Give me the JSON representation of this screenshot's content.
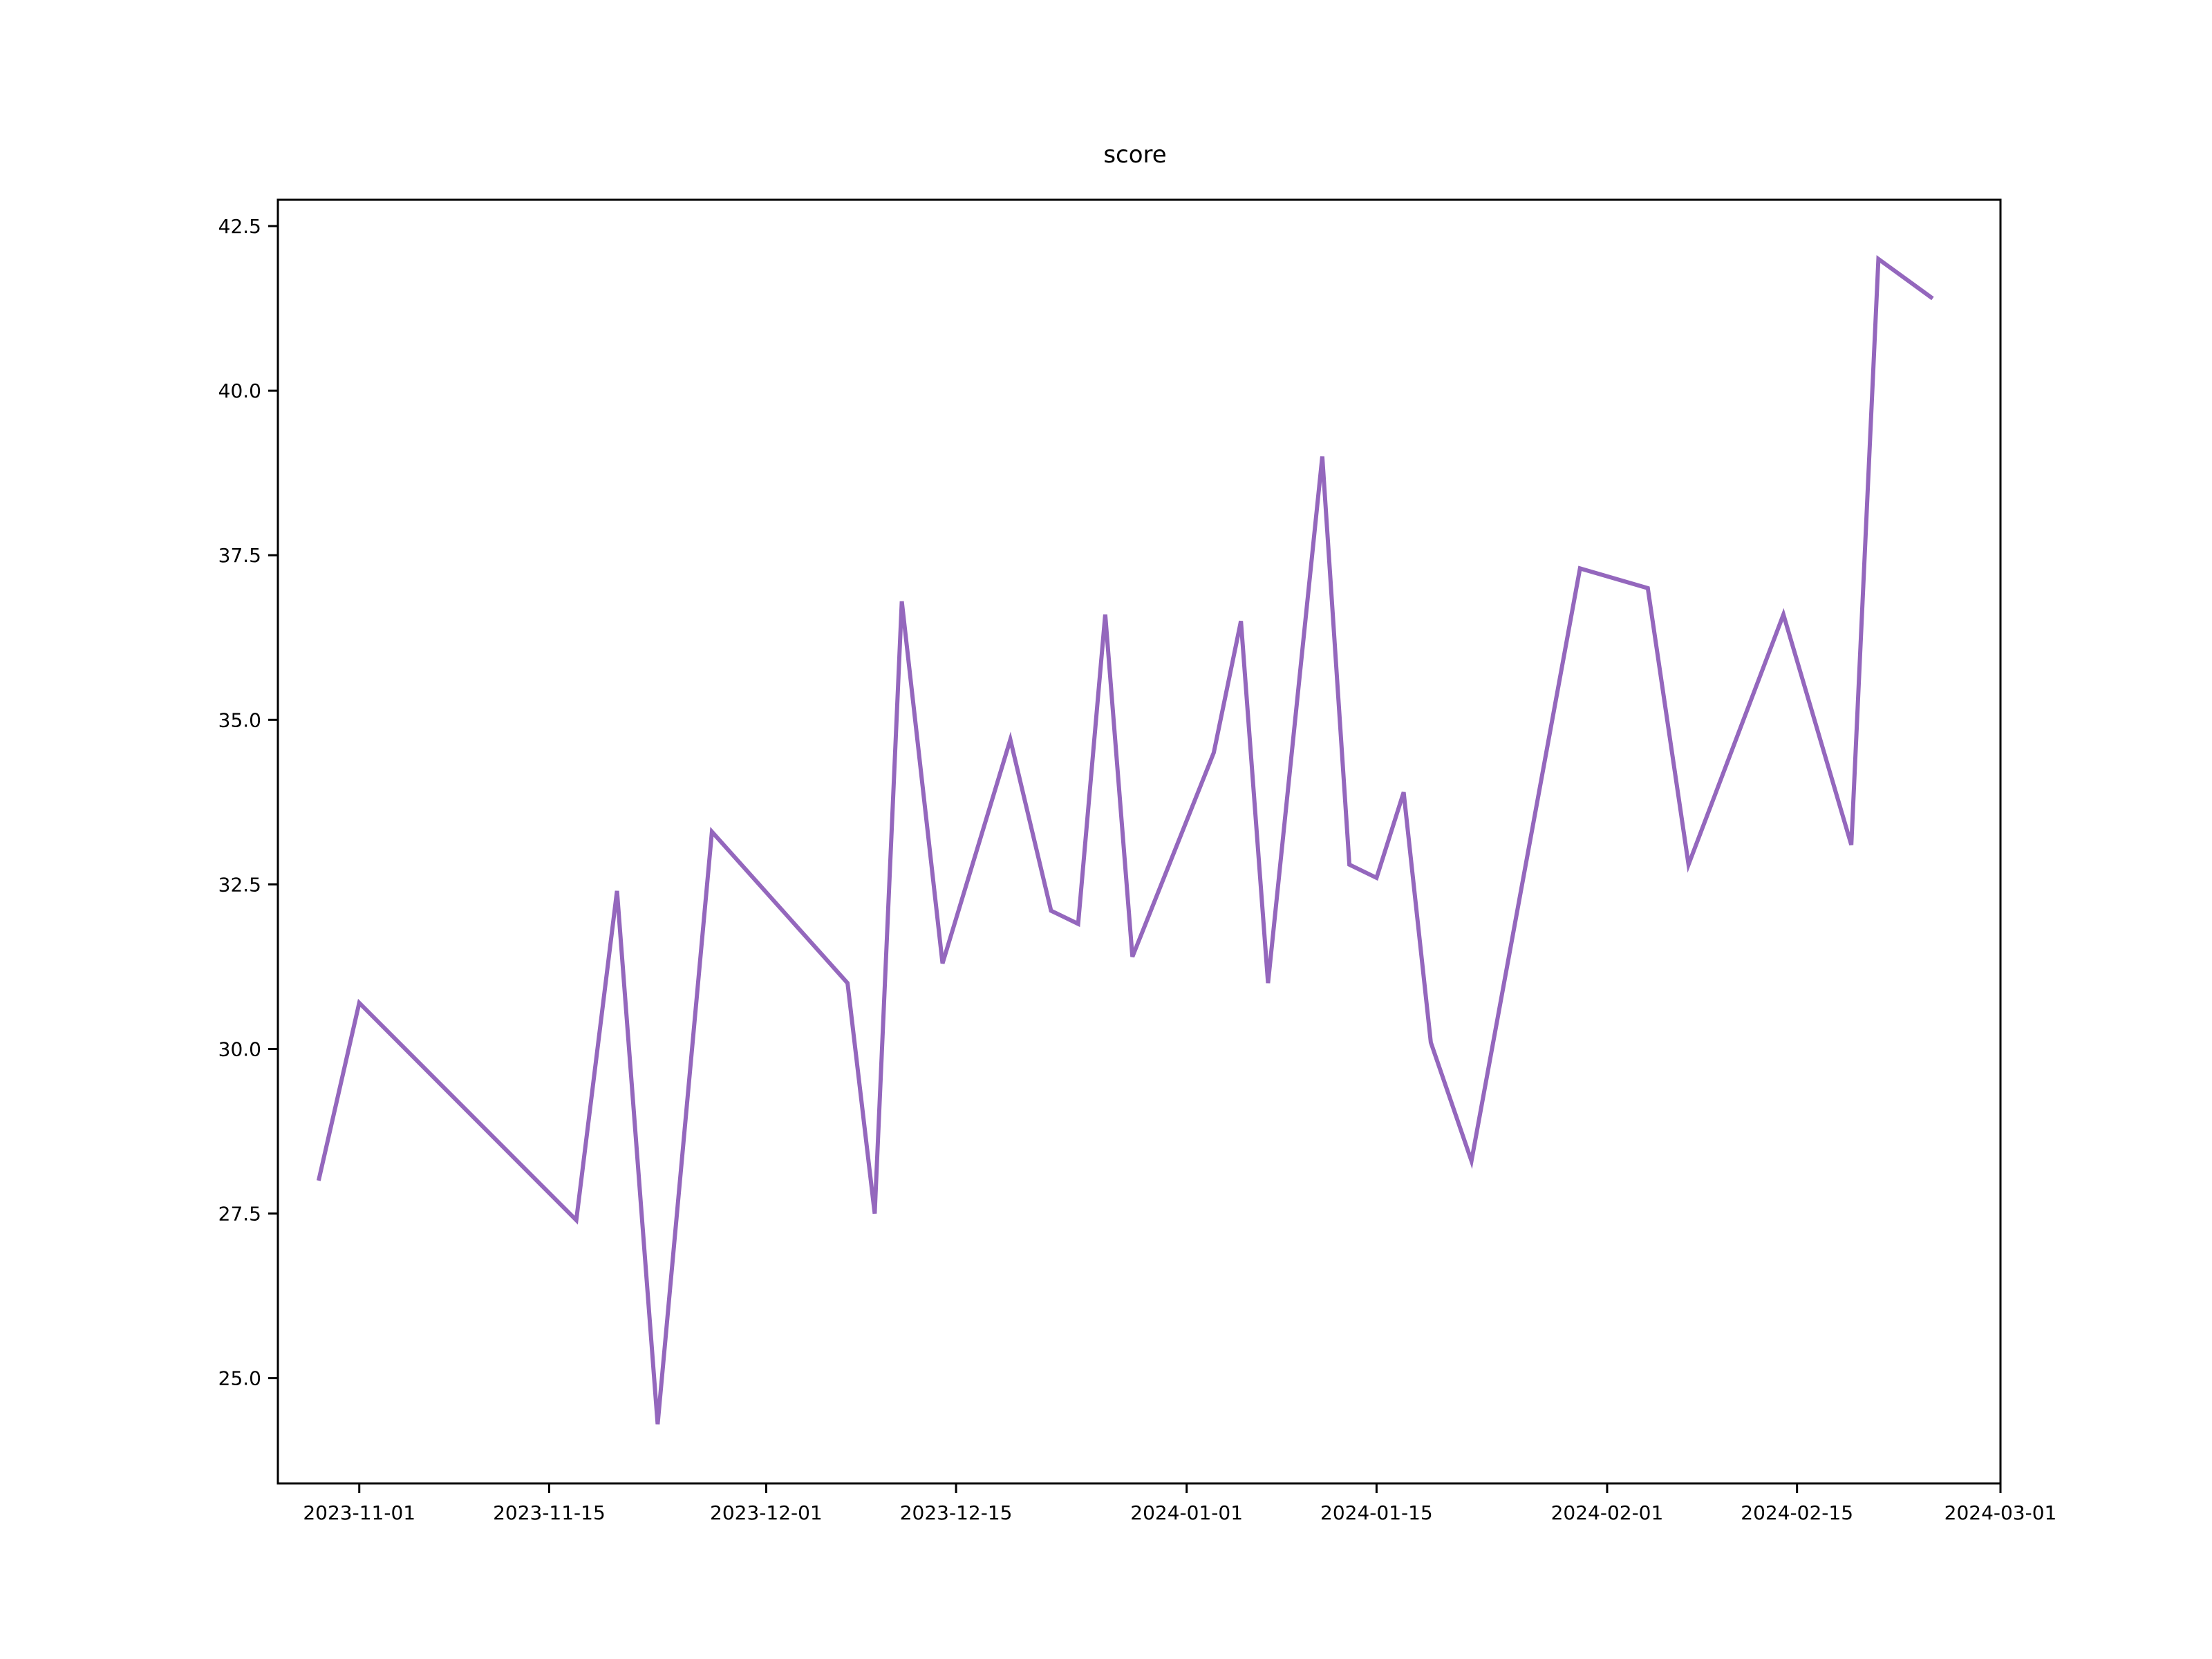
{
  "chart_data": {
    "type": "line",
    "title": "score",
    "xlabel": "",
    "ylabel": "",
    "x_type": "date",
    "xlim": [
      "2023-10-26",
      "2024-03-01"
    ],
    "ylim": [
      23.4,
      42.9
    ],
    "grid": false,
    "line_color": "#9467bd",
    "x_ticks": [
      "2023-11-01",
      "2023-11-15",
      "2023-12-01",
      "2023-12-15",
      "2024-01-01",
      "2024-01-15",
      "2024-02-01",
      "2024-02-15",
      "2024-03-01"
    ],
    "y_ticks": [
      "25.0",
      "27.5",
      "30.0",
      "32.5",
      "35.0",
      "37.5",
      "40.0",
      "42.5"
    ],
    "series": [
      {
        "x": [
          "2023-10-29",
          "2023-11-01",
          "2023-11-17",
          "2023-11-20",
          "2023-11-23",
          "2023-11-27",
          "2023-12-07",
          "2023-12-09",
          "2023-12-11",
          "2023-12-14",
          "2023-12-19",
          "2023-12-22",
          "2023-12-24",
          "2023-12-26",
          "2023-12-28",
          "2024-01-03",
          "2024-01-05",
          "2024-01-07",
          "2024-01-11",
          "2024-01-13",
          "2024-01-15",
          "2024-01-17",
          "2024-01-19",
          "2024-01-22",
          "2024-01-30",
          "2024-02-04",
          "2024-02-07",
          "2024-02-14",
          "2024-02-19",
          "2024-02-21",
          "2024-02-25"
        ],
        "y": [
          28.0,
          30.7,
          27.4,
          32.4,
          24.3,
          33.3,
          31.0,
          27.5,
          36.8,
          31.3,
          34.7,
          32.1,
          31.9,
          36.6,
          31.4,
          34.5,
          36.5,
          31.0,
          39.0,
          32.8,
          32.6,
          33.9,
          30.1,
          28.3,
          37.3,
          37.0,
          32.8,
          36.6,
          33.1,
          42.0,
          41.4
        ]
      }
    ]
  }
}
